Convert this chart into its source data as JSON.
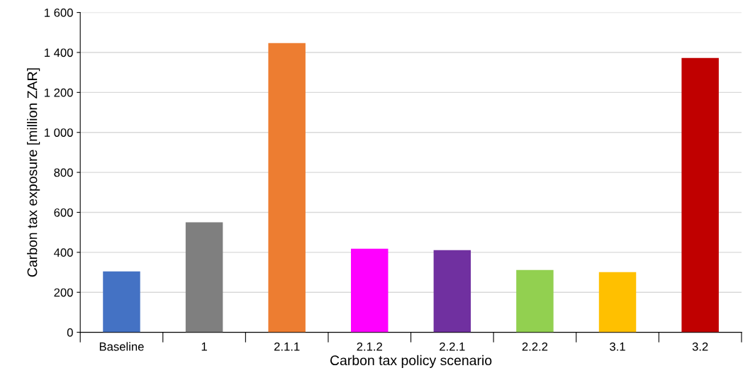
{
  "chart_data": {
    "type": "bar",
    "xlabel": "Carbon tax policy scenario",
    "ylabel": "Carbon tax exposure [million ZAR]",
    "categories": [
      "Baseline",
      "1",
      "2.1.1",
      "2.1.2",
      "2.2.1",
      "2.2.2",
      "3.1",
      "3.2"
    ],
    "values": [
      305,
      550,
      1447,
      418,
      411,
      312,
      301,
      1372
    ],
    "colors": [
      "#4472c4",
      "#7f7f7f",
      "#ed7d31",
      "#ff00ff",
      "#7030a0",
      "#92d050",
      "#ffc000",
      "#c00000"
    ],
    "ylim": [
      0,
      1600
    ],
    "yticks": [
      0,
      200,
      400,
      600,
      800,
      {
        "value": 1000,
        "label": "1 000"
      },
      {
        "value": 1200,
        "label": "1 200"
      },
      {
        "value": 1400,
        "label": "1 400"
      },
      {
        "value": 1600,
        "label": "1 600"
      }
    ],
    "grid": "y",
    "legend": false
  }
}
